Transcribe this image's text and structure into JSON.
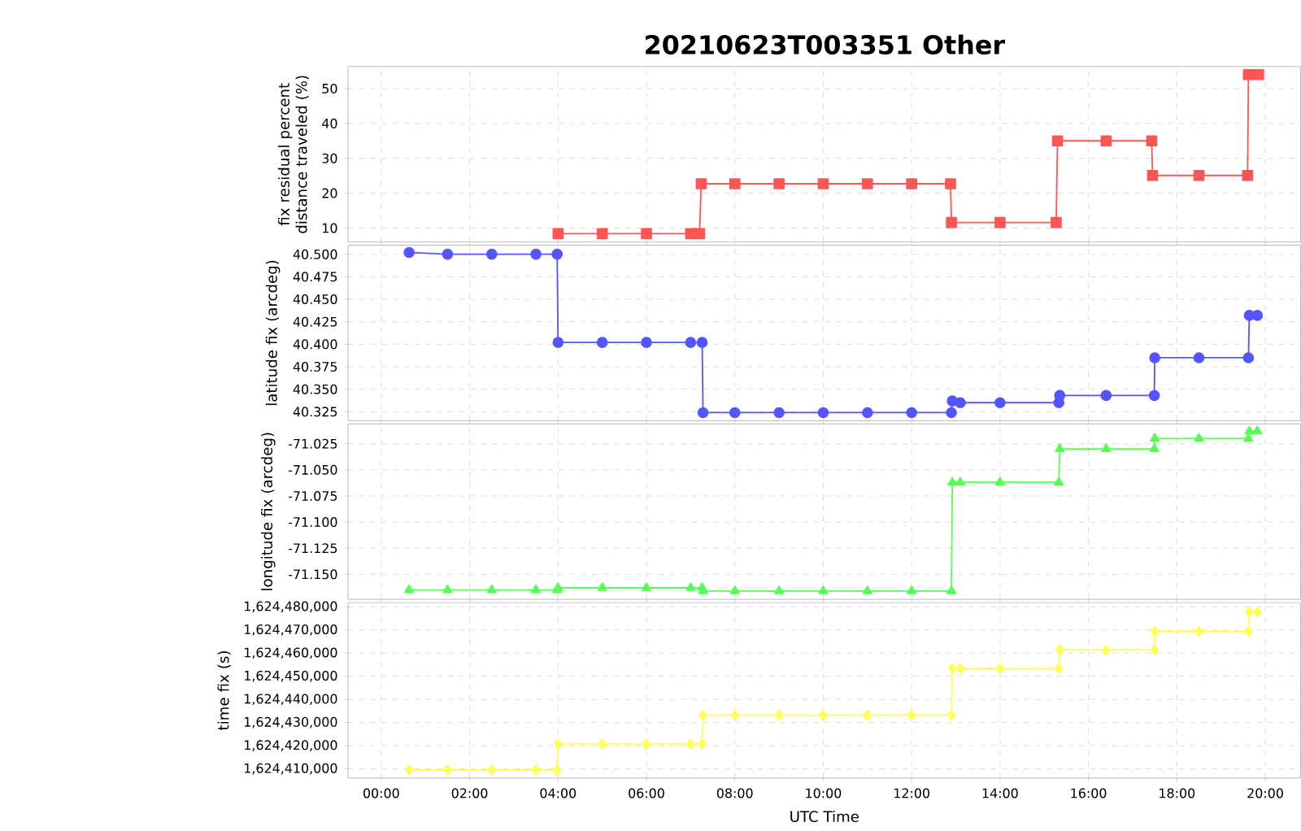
{
  "chart_data": [
    {
      "type": "line",
      "title": "20210623T003351 Other",
      "ylabel": "fix residual percent distance traveled (%)",
      "color": "#ff5555",
      "marker": "square",
      "line_style": "solid",
      "grid": true,
      "tick_labels": "y",
      "x": [
        4.0,
        5.0,
        6.0,
        7.0,
        7.2,
        7.24,
        8,
        9,
        10,
        11,
        12,
        12.88,
        12.9,
        14,
        15.27,
        15.3,
        16.4,
        17.43,
        17.45,
        18.5,
        19.6,
        19.62,
        19.85
      ],
      "values": [
        8.4,
        8.4,
        8.4,
        8.4,
        8.4,
        22.7,
        22.7,
        22.7,
        22.7,
        22.7,
        22.7,
        22.7,
        11.6,
        11.6,
        11.6,
        35,
        35,
        35,
        25.1,
        25.1,
        25.1,
        54,
        54
      ],
      "xlim": [
        -0.75,
        20.8
      ],
      "xticks": [
        {
          "value": 0,
          "label": null
        },
        {
          "value": 2,
          "label": null
        },
        {
          "value": 4,
          "label": null
        },
        {
          "value": 6,
          "label": null
        },
        {
          "value": 8,
          "label": null
        },
        {
          "value": 10,
          "label": null
        },
        {
          "value": 12,
          "label": null
        },
        {
          "value": 14,
          "label": null
        },
        {
          "value": 16,
          "label": null
        },
        {
          "value": 18,
          "label": null
        },
        {
          "value": 20,
          "label": null
        }
      ],
      "ylim": [
        6,
        56.3
      ],
      "yticks": [
        10,
        20,
        30,
        40,
        50
      ]
    },
    {
      "type": "line",
      "ylabel": "latitude fix (arcdeg)",
      "color": "#5555ff",
      "marker": "circle",
      "line_style": "solid",
      "grid": true,
      "tick_labels": "y",
      "x": [
        0.63,
        1.5,
        2.5,
        3.5,
        3.98,
        4.0,
        5,
        6,
        7,
        7.26,
        7.28,
        8,
        9,
        10,
        11,
        12,
        12.9,
        12.92,
        13.1,
        14,
        15.33,
        15.35,
        16.4,
        17.49,
        17.5,
        18.5,
        19.62,
        19.64,
        19.82
      ],
      "values": [
        40.502,
        40.5,
        40.5,
        40.5,
        40.5,
        40.402,
        40.402,
        40.402,
        40.402,
        40.402,
        40.324,
        40.324,
        40.324,
        40.324,
        40.324,
        40.324,
        40.324,
        40.337,
        40.335,
        40.335,
        40.335,
        40.343,
        40.343,
        40.343,
        40.385,
        40.385,
        40.385,
        40.432,
        40.432
      ],
      "xlim": [
        -0.75,
        20.8
      ],
      "xticks": [
        {
          "value": 0,
          "label": null
        },
        {
          "value": 2,
          "label": null
        },
        {
          "value": 4,
          "label": null
        },
        {
          "value": 6,
          "label": null
        },
        {
          "value": 8,
          "label": null
        },
        {
          "value": 10,
          "label": null
        },
        {
          "value": 12,
          "label": null
        },
        {
          "value": 14,
          "label": null
        },
        {
          "value": 16,
          "label": null
        },
        {
          "value": 18,
          "label": null
        },
        {
          "value": 20,
          "label": null
        }
      ],
      "ylim": [
        40.315,
        40.51
      ],
      "yticks": [
        {
          "value": 40.325,
          "label": "40.325"
        },
        {
          "value": 40.35,
          "label": "40.350"
        },
        {
          "value": 40.375,
          "label": "40.375"
        },
        {
          "value": 40.4,
          "label": "40.400"
        },
        {
          "value": 40.425,
          "label": "40.425"
        },
        {
          "value": 40.45,
          "label": "40.450"
        },
        {
          "value": 40.475,
          "label": "40.475"
        },
        {
          "value": 40.5,
          "label": "40.500"
        }
      ]
    },
    {
      "type": "line",
      "ylabel": "longitude fix (arcdeg)",
      "color": "#55ff55",
      "marker": "triangle",
      "line_style": "solid",
      "grid": true,
      "tick_labels": "y",
      "x": [
        0.63,
        1.5,
        2.5,
        3.5,
        3.98,
        4.0,
        5,
        6,
        7,
        7.26,
        7.28,
        8,
        9,
        10,
        11,
        12,
        12.9,
        12.92,
        13.1,
        14,
        15.33,
        15.35,
        16.4,
        17.49,
        17.5,
        18.5,
        19.62,
        19.64,
        19.82
      ],
      "values": [
        -71.165,
        -71.165,
        -71.165,
        -71.165,
        -71.165,
        -71.163,
        -71.163,
        -71.163,
        -71.163,
        -71.163,
        -71.166,
        -71.166,
        -71.166,
        -71.166,
        -71.166,
        -71.166,
        -71.166,
        -71.062,
        -71.062,
        -71.062,
        -71.062,
        -71.03,
        -71.03,
        -71.03,
        -71.02,
        -71.02,
        -71.02,
        -71.013,
        -71.013
      ],
      "xlim": [
        -0.75,
        20.8
      ],
      "xticks": [
        {
          "value": 0,
          "label": null
        },
        {
          "value": 2,
          "label": null
        },
        {
          "value": 4,
          "label": null
        },
        {
          "value": 6,
          "label": null
        },
        {
          "value": 8,
          "label": null
        },
        {
          "value": 10,
          "label": null
        },
        {
          "value": 12,
          "label": null
        },
        {
          "value": 14,
          "label": null
        },
        {
          "value": 16,
          "label": null
        },
        {
          "value": 18,
          "label": null
        },
        {
          "value": 20,
          "label": null
        }
      ],
      "ylim": [
        -71.174,
        -71.006
      ],
      "yticks": [
        {
          "value": -71.15,
          "label": "-71.150"
        },
        {
          "value": -71.125,
          "label": "-71.125"
        },
        {
          "value": -71.1,
          "label": "-71.100"
        },
        {
          "value": -71.075,
          "label": "-71.075"
        },
        {
          "value": -71.05,
          "label": "-71.050"
        },
        {
          "value": -71.025,
          "label": "-71.025"
        }
      ]
    },
    {
      "type": "line",
      "xlabel": "UTC Time",
      "ylabel": "time fix (s)",
      "color": "#ffff55",
      "marker": "diamond",
      "line_style": "solid",
      "grid": true,
      "x": [
        0.63,
        1.5,
        2.5,
        3.5,
        3.98,
        4.0,
        5,
        6,
        7,
        7.26,
        7.28,
        8,
        9,
        10,
        11,
        12,
        12.9,
        12.92,
        13.1,
        14,
        15.33,
        15.35,
        16.4,
        17.49,
        17.5,
        18.5,
        19.62,
        19.64,
        19.82
      ],
      "values": [
        1624409500,
        1624409500,
        1624409500,
        1624409500,
        1624409500,
        1624420700,
        1624420700,
        1624420700,
        1624420700,
        1624420700,
        1624433200,
        1624433200,
        1624433200,
        1624433200,
        1624433200,
        1624433200,
        1624433200,
        1624453400,
        1624453400,
        1624453400,
        1624453400,
        1624461400,
        1624461400,
        1624461400,
        1624469300,
        1624469300,
        1624469300,
        1624477800,
        1624477800
      ],
      "xlim": [
        -0.75,
        20.8
      ],
      "xticks": [
        {
          "value": 0,
          "label": "00:00"
        },
        {
          "value": 2,
          "label": "02:00"
        },
        {
          "value": 4,
          "label": "04:00"
        },
        {
          "value": 6,
          "label": "06:00"
        },
        {
          "value": 8,
          "label": "08:00"
        },
        {
          "value": 10,
          "label": "10:00"
        },
        {
          "value": 12,
          "label": "12:00"
        },
        {
          "value": 14,
          "label": "14:00"
        },
        {
          "value": 16,
          "label": "16:00"
        },
        {
          "value": 18,
          "label": "18:00"
        },
        {
          "value": 20,
          "label": "20:00"
        }
      ],
      "ylim": [
        1624406050,
        1624481850
      ],
      "yticks": [
        {
          "value": 1624410000,
          "label": "1,624,410,000"
        },
        {
          "value": 1624420000,
          "label": "1,624,420,000"
        },
        {
          "value": 1624430000,
          "label": "1,624,430,000"
        },
        {
          "value": 1624440000,
          "label": "1,624,440,000"
        },
        {
          "value": 1624450000,
          "label": "1,624,450,000"
        },
        {
          "value": 1624460000,
          "label": "1,624,460,000"
        },
        {
          "value": 1624470000,
          "label": "1,624,470,000"
        },
        {
          "value": 1624480000,
          "label": "1,624,480,000"
        }
      ]
    }
  ]
}
